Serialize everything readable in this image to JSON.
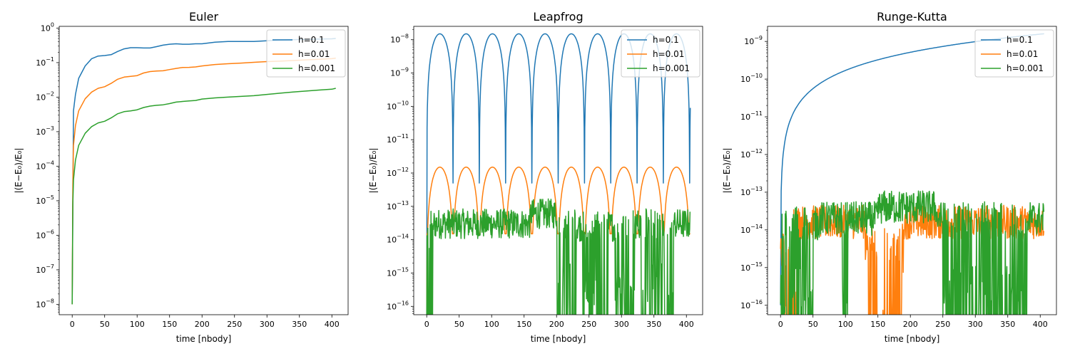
{
  "figure": {
    "xlabel": "time [nbody]",
    "ylabel": "|(E−E₀)/E₀|"
  },
  "chart_data": [
    {
      "type": "line",
      "title": "Euler",
      "xlabel": "time [nbody]",
      "ylabel": "|(E−E₀)/E₀|",
      "yscale": "log",
      "xlim": [
        -20,
        425
      ],
      "ylim_exp": [
        -8.3,
        0.05
      ],
      "xticks": [
        0,
        50,
        100,
        150,
        200,
        250,
        300,
        350,
        400
      ],
      "yticks_exp": [
        -8,
        -7,
        -6,
        -5,
        -4,
        -3,
        -2,
        -1,
        0
      ],
      "legend": {
        "position": "top-right",
        "entries": [
          "h=0.1",
          "h=0.01",
          "h=0.001"
        ]
      },
      "series": [
        {
          "name": "h=0.1",
          "color": "#1f77b4",
          "x": [
            0,
            2,
            5,
            10,
            20,
            30,
            40,
            50,
            60,
            70,
            80,
            90,
            100,
            110,
            120,
            130,
            140,
            150,
            160,
            170,
            180,
            190,
            200,
            220,
            240,
            260,
            280,
            300,
            320,
            340,
            360,
            380,
            400,
            406
          ],
          "y": [
            1e-08,
            0.004,
            0.012,
            0.035,
            0.08,
            0.13,
            0.155,
            0.16,
            0.17,
            0.21,
            0.25,
            0.27,
            0.27,
            0.265,
            0.265,
            0.29,
            0.32,
            0.34,
            0.35,
            0.34,
            0.34,
            0.35,
            0.35,
            0.39,
            0.41,
            0.41,
            0.41,
            0.43,
            0.45,
            0.46,
            0.47,
            0.48,
            0.49,
            0.5
          ]
        },
        {
          "name": "h=0.01",
          "color": "#ff7f0e",
          "x": [
            0,
            1,
            2,
            5,
            10,
            20,
            30,
            40,
            50,
            60,
            70,
            80,
            90,
            100,
            110,
            120,
            130,
            140,
            150,
            160,
            170,
            180,
            190,
            200,
            220,
            240,
            260,
            280,
            300,
            320,
            340,
            360,
            380,
            400,
            406
          ],
          "y": [
            1e-08,
            3e-05,
            0.0004,
            0.0015,
            0.004,
            0.009,
            0.014,
            0.018,
            0.02,
            0.025,
            0.033,
            0.038,
            0.04,
            0.042,
            0.05,
            0.055,
            0.057,
            0.058,
            0.063,
            0.068,
            0.072,
            0.073,
            0.075,
            0.08,
            0.088,
            0.093,
            0.097,
            0.102,
            0.107,
            0.11,
            0.115,
            0.12,
            0.125,
            0.13,
            0.135
          ]
        },
        {
          "name": "h=0.001",
          "color": "#2ca02c",
          "x": [
            0,
            1,
            2,
            5,
            10,
            20,
            30,
            40,
            50,
            60,
            70,
            80,
            90,
            100,
            110,
            120,
            130,
            140,
            150,
            160,
            170,
            180,
            190,
            200,
            220,
            240,
            260,
            280,
            300,
            320,
            340,
            360,
            380,
            400,
            406
          ],
          "y": [
            1e-08,
            8e-06,
            4e-05,
            0.00015,
            0.0004,
            0.0009,
            0.0014,
            0.0018,
            0.002,
            0.0025,
            0.0033,
            0.0038,
            0.004,
            0.0043,
            0.005,
            0.0055,
            0.0058,
            0.006,
            0.0065,
            0.0072,
            0.0075,
            0.0078,
            0.008,
            0.0088,
            0.0095,
            0.01,
            0.0105,
            0.011,
            0.012,
            0.013,
            0.014,
            0.015,
            0.016,
            0.017,
            0.018
          ]
        }
      ]
    },
    {
      "type": "line",
      "title": "Leapfrog",
      "xlabel": "time [nbody]",
      "ylabel": "|(E−E₀)/E₀|",
      "yscale": "log",
      "xlim": [
        -20,
        425
      ],
      "ylim_exp": [
        -16.25,
        -7.6
      ],
      "xticks": [
        0,
        50,
        100,
        150,
        200,
        250,
        300,
        350,
        400
      ],
      "yticks_exp": [
        -16,
        -15,
        -14,
        -13,
        -12,
        -11,
        -10,
        -9,
        -8
      ],
      "legend": {
        "position": "top-right",
        "entries": [
          "h=0.1",
          "h=0.01",
          "h=0.001"
        ]
      },
      "series": [
        {
          "name": "h=0.1",
          "color": "#1f77b4",
          "period": 40.5,
          "peak": 1.5e-08,
          "dip": 5e-13,
          "t_end": 406
        },
        {
          "name": "h=0.01",
          "color": "#ff7f0e",
          "period": 40.5,
          "peak": 1.5e-12,
          "dip": 1.5e-14,
          "t_end": 406
        },
        {
          "name": "h=0.001",
          "color": "#2ca02c",
          "noise_level": 3e-14,
          "floor": 1e-16,
          "t_end": 406
        }
      ]
    },
    {
      "type": "line",
      "title": "Runge-Kutta",
      "xlabel": "time [nbody]",
      "ylabel": "|(E−E₀)/E₀|",
      "yscale": "log",
      "xlim": [
        -20,
        425
      ],
      "ylim_exp": [
        -16.25,
        -8.6
      ],
      "xticks": [
        0,
        50,
        100,
        150,
        200,
        250,
        300,
        350,
        400
      ],
      "yticks_exp": [
        -16,
        -15,
        -14,
        -13,
        -12,
        -11,
        -10,
        -9
      ],
      "legend": {
        "position": "top-right",
        "entries": [
          "h=0.1",
          "h=0.01",
          "h=0.001"
        ]
      },
      "series": [
        {
          "name": "h=0.1",
          "color": "#1f77b4",
          "final": 1.6e-09,
          "t_end": 406
        },
        {
          "name": "h=0.01",
          "color": "#ff7f0e",
          "noise_level": 1.5e-14,
          "floor": 1e-16,
          "t_end": 406
        },
        {
          "name": "h=0.001",
          "color": "#2ca02c",
          "noise_level": 2.5e-14,
          "floor": 1e-16,
          "t_end": 406
        }
      ]
    }
  ]
}
